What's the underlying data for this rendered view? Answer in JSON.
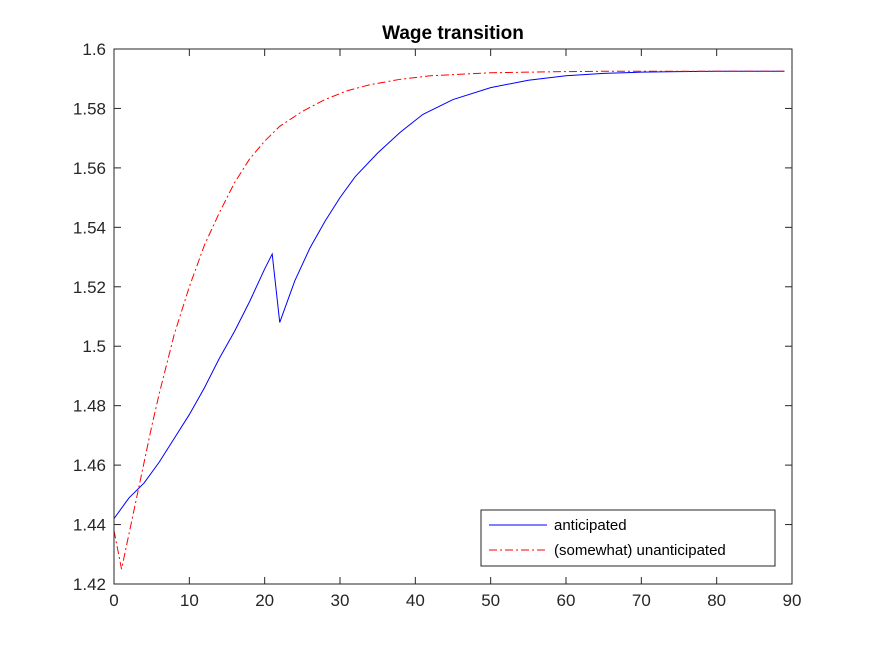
{
  "chart_data": {
    "type": "line",
    "title": "Wage transition",
    "xlabel": "",
    "ylabel": "",
    "xlim": [
      0,
      90
    ],
    "ylim": [
      1.42,
      1.6
    ],
    "x_ticks": [
      0,
      10,
      20,
      30,
      40,
      50,
      60,
      70,
      80,
      90
    ],
    "y_ticks": [
      1.42,
      1.44,
      1.46,
      1.48,
      1.5,
      1.52,
      1.54,
      1.56,
      1.58,
      1.6
    ],
    "y_tick_labels": [
      "1.42",
      "1.44",
      "1.46",
      "1.48",
      "1.5",
      "1.52",
      "1.54",
      "1.56",
      "1.58",
      "1.6"
    ],
    "grid": false,
    "legend_position": "bottom-right",
    "series": [
      {
        "name": "anticipated",
        "color": "#0000ff",
        "style": "solid",
        "x": [
          0,
          2,
          4,
          6,
          8,
          10,
          12,
          14,
          16,
          18,
          20,
          21,
          22,
          24,
          26,
          28,
          30,
          32,
          35,
          38,
          41,
          45,
          50,
          55,
          60,
          65,
          70,
          75,
          80,
          85,
          89
        ],
        "y": [
          1.442,
          1.449,
          1.454,
          1.461,
          1.469,
          1.477,
          1.486,
          1.496,
          1.505,
          1.515,
          1.526,
          1.531,
          1.508,
          1.522,
          1.533,
          1.542,
          1.55,
          1.557,
          1.565,
          1.572,
          1.578,
          1.583,
          1.587,
          1.5895,
          1.591,
          1.5918,
          1.5922,
          1.5924,
          1.5925,
          1.5925,
          1.5925
        ]
      },
      {
        "name": "(somewhat) unanticipated",
        "color": "#ff0000",
        "style": "dash-dot",
        "x": [
          0,
          1,
          2,
          3,
          4,
          5,
          6,
          8,
          10,
          12,
          14,
          16,
          18,
          20,
          22,
          25,
          28,
          31,
          34,
          38,
          42,
          46,
          50,
          55,
          60,
          65,
          70,
          80,
          89
        ],
        "y": [
          1.438,
          1.425,
          1.437,
          1.449,
          1.461,
          1.473,
          1.484,
          1.504,
          1.52,
          1.534,
          1.545,
          1.555,
          1.563,
          1.569,
          1.574,
          1.579,
          1.583,
          1.586,
          1.588,
          1.5898,
          1.591,
          1.5915,
          1.592,
          1.5922,
          1.5924,
          1.5925,
          1.5925,
          1.5925,
          1.5925
        ]
      }
    ]
  }
}
